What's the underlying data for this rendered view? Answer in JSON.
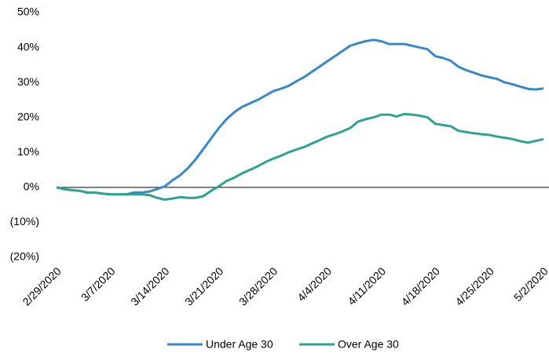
{
  "chart_data": {
    "type": "line",
    "categories": [
      "2/29/2020",
      null,
      null,
      null,
      null,
      null,
      null,
      "3/7/2020",
      null,
      null,
      null,
      null,
      null,
      null,
      "3/14/2020",
      null,
      null,
      null,
      null,
      null,
      null,
      "3/21/2020",
      null,
      null,
      null,
      null,
      null,
      null,
      "3/28/2020",
      null,
      null,
      null,
      null,
      null,
      null,
      "4/4/2020",
      null,
      null,
      null,
      null,
      null,
      null,
      "4/11/2020",
      null,
      null,
      null,
      null,
      null,
      null,
      "4/18/2020",
      null,
      null,
      null,
      null,
      null,
      null,
      "4/25/2020",
      null,
      null,
      null,
      null,
      null,
      null,
      "5/2/2020"
    ],
    "series": [
      {
        "name": "Under Age 30",
        "color": "#3a87c8",
        "values": [
          0,
          -0.5,
          -0.8,
          -1.0,
          -1.5,
          -1.5,
          -1.8,
          -2.0,
          -2.0,
          -2.0,
          -1.5,
          -1.5,
          -1.2,
          -0.5,
          0.3,
          2,
          3.5,
          5.5,
          8,
          11,
          14,
          17,
          19.5,
          21.5,
          23,
          24,
          25,
          26.2,
          27.5,
          28.2,
          29,
          30.3,
          31.5,
          33,
          34.5,
          36,
          37.5,
          39,
          40.5,
          41.2,
          41.8,
          42.2,
          41.8,
          41,
          41,
          41,
          40.5,
          40,
          39.5,
          37.5,
          37,
          36.2,
          34.5,
          33.5,
          32.8,
          32,
          31.5,
          31,
          30,
          29.5,
          28.8,
          28.2,
          28,
          28.3
        ]
      },
      {
        "name": "Over Age 30",
        "color": "#2fa38f",
        "values": [
          0,
          -0.5,
          -0.8,
          -1,
          -1.5,
          -1.5,
          -1.8,
          -2,
          -2,
          -2,
          -2,
          -2,
          -2.2,
          -3,
          -3.5,
          -3.2,
          -2.8,
          -3,
          -3,
          -2.5,
          -1,
          0.3,
          1.8,
          2.8,
          4,
          5,
          6,
          7.2,
          8.2,
          9,
          10,
          10.8,
          11.5,
          12.5,
          13.5,
          14.5,
          15.2,
          16,
          17,
          18.8,
          19.5,
          20,
          20.8,
          20.8,
          20.3,
          21,
          20.8,
          20.5,
          20,
          18.2,
          17.8,
          17.5,
          16.2,
          15.8,
          15.5,
          15.2,
          15,
          14.5,
          14.2,
          13.8,
          13.2,
          12.8,
          13.3,
          13.8
        ]
      }
    ],
    "ylim": [
      -20,
      50
    ],
    "yticks": [
      {
        "value": -20,
        "label": "(20%)"
      },
      {
        "value": -10,
        "label": "(10%)"
      },
      {
        "value": 0,
        "label": "0%"
      },
      {
        "value": 10,
        "label": "10%"
      },
      {
        "value": 20,
        "label": "20%"
      },
      {
        "value": 30,
        "label": "30%"
      },
      {
        "value": 40,
        "label": "40%"
      },
      {
        "value": 50,
        "label": "50%"
      }
    ],
    "legend": "bottom"
  }
}
